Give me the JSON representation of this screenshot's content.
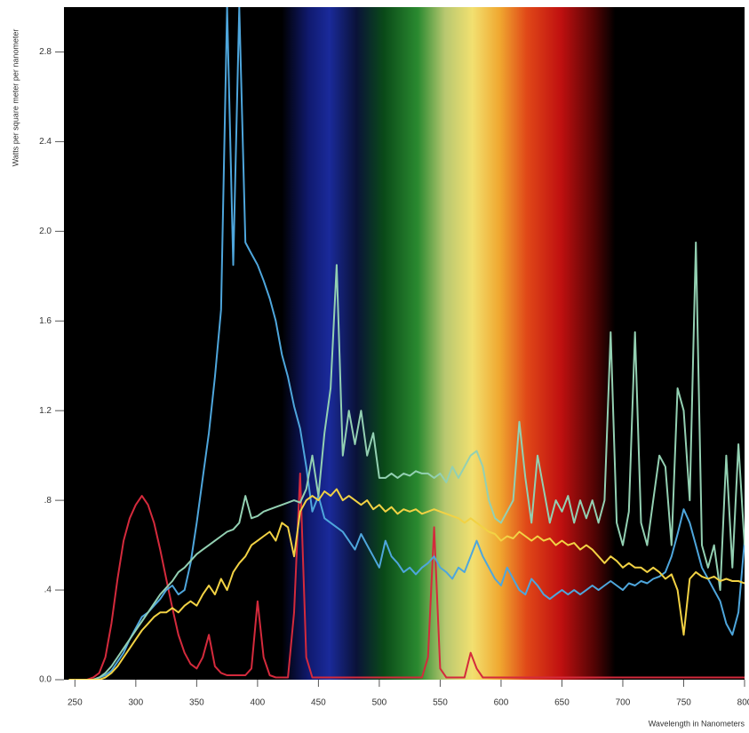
{
  "chart_data": {
    "type": "line",
    "y_label": "Watts per square meter per nanometer",
    "x_label": "Wavelength in Nanometers",
    "x": [
      245,
      250,
      255,
      260,
      265,
      270,
      275,
      280,
      285,
      290,
      295,
      300,
      305,
      310,
      315,
      320,
      325,
      330,
      335,
      340,
      345,
      350,
      355,
      360,
      365,
      370,
      375,
      380,
      385,
      390,
      395,
      400,
      405,
      410,
      415,
      420,
      425,
      430,
      435,
      440,
      445,
      450,
      455,
      460,
      465,
      470,
      475,
      480,
      485,
      490,
      495,
      500,
      505,
      510,
      515,
      520,
      525,
      530,
      535,
      540,
      545,
      550,
      555,
      560,
      565,
      570,
      575,
      580,
      585,
      590,
      595,
      600,
      605,
      610,
      615,
      620,
      625,
      630,
      635,
      640,
      645,
      650,
      655,
      660,
      665,
      670,
      675,
      680,
      685,
      690,
      695,
      700,
      705,
      710,
      715,
      720,
      725,
      730,
      735,
      740,
      745,
      750,
      755,
      760,
      765,
      770,
      775,
      780,
      785,
      790,
      795,
      800
    ],
    "series": [
      {
        "color": "#d42a3c",
        "values": [
          0,
          0,
          0,
          0,
          0.01,
          0.03,
          0.1,
          0.25,
          0.45,
          0.62,
          0.72,
          0.78,
          0.82,
          0.78,
          0.7,
          0.58,
          0.45,
          0.32,
          0.2,
          0.12,
          0.07,
          0.05,
          0.1,
          0.2,
          0.06,
          0.03,
          0.02,
          0.02,
          0.02,
          0.02,
          0.05,
          0.35,
          0.1,
          0.02,
          0.01,
          0.01,
          0.01,
          0.3,
          0.92,
          0.1,
          0.01,
          0.01,
          0.01,
          0.01,
          0.01,
          0.01,
          0.01,
          0.01,
          0.01,
          0.01,
          0.01,
          0.01,
          0.01,
          0.01,
          0.01,
          0.01,
          0.01,
          0.01,
          0.01,
          0.1,
          0.68,
          0.05,
          0.01,
          0.01,
          0.01,
          0.01,
          0.12,
          0.05,
          0.01,
          0.01,
          0.01,
          0.01,
          0.01,
          0.01,
          0.01,
          0.01,
          0.01,
          0.01,
          0.01,
          0.01,
          0.01,
          0.01,
          0.01,
          0.01,
          0.01,
          0.01,
          0.01,
          0.01,
          0.01,
          0.01,
          0.01,
          0.01,
          0.01,
          0.01,
          0.01,
          0.01,
          0.01,
          0.01,
          0.01,
          0.01,
          0.01,
          0.01,
          0.01,
          0.01,
          0.01,
          0.01,
          0.01,
          0.01,
          0.01,
          0.01,
          0.01,
          0.01
        ]
      },
      {
        "color": "#4ea6dc",
        "values": [
          0,
          0,
          0,
          0,
          0,
          0.01,
          0.02,
          0.04,
          0.08,
          0.12,
          0.18,
          0.23,
          0.28,
          0.3,
          0.33,
          0.36,
          0.4,
          0.42,
          0.38,
          0.4,
          0.52,
          0.7,
          0.9,
          1.1,
          1.35,
          1.65,
          3.0,
          1.85,
          3.0,
          1.95,
          1.9,
          1.85,
          1.78,
          1.7,
          1.6,
          1.45,
          1.35,
          1.22,
          1.12,
          0.95,
          0.75,
          0.82,
          0.72,
          0.7,
          0.68,
          0.66,
          0.62,
          0.58,
          0.65,
          0.6,
          0.55,
          0.5,
          0.62,
          0.55,
          0.52,
          0.48,
          0.5,
          0.47,
          0.5,
          0.52,
          0.55,
          0.5,
          0.48,
          0.45,
          0.5,
          0.48,
          0.55,
          0.62,
          0.55,
          0.5,
          0.45,
          0.42,
          0.5,
          0.45,
          0.4,
          0.38,
          0.45,
          0.42,
          0.38,
          0.36,
          0.38,
          0.4,
          0.38,
          0.4,
          0.38,
          0.4,
          0.42,
          0.4,
          0.42,
          0.44,
          0.42,
          0.4,
          0.43,
          0.42,
          0.44,
          0.43,
          0.45,
          0.46,
          0.48,
          0.55,
          0.65,
          0.76,
          0.7,
          0.6,
          0.5,
          0.45,
          0.4,
          0.35,
          0.25,
          0.2,
          0.3,
          0.62
        ]
      },
      {
        "color": "#93d0b2",
        "values": [
          0,
          0,
          0,
          0,
          0,
          0.01,
          0.03,
          0.06,
          0.1,
          0.14,
          0.18,
          0.22,
          0.26,
          0.3,
          0.34,
          0.38,
          0.41,
          0.44,
          0.48,
          0.5,
          0.53,
          0.56,
          0.58,
          0.6,
          0.62,
          0.64,
          0.66,
          0.67,
          0.7,
          0.82,
          0.72,
          0.73,
          0.75,
          0.76,
          0.77,
          0.78,
          0.79,
          0.8,
          0.79,
          0.85,
          1.0,
          0.82,
          1.1,
          1.3,
          1.85,
          1.0,
          1.2,
          1.05,
          1.2,
          1.0,
          1.1,
          0.9,
          0.9,
          0.92,
          0.9,
          0.92,
          0.91,
          0.93,
          0.92,
          0.92,
          0.9,
          0.92,
          0.88,
          0.95,
          0.9,
          0.95,
          1.0,
          1.02,
          0.95,
          0.8,
          0.72,
          0.7,
          0.75,
          0.8,
          1.15,
          0.9,
          0.7,
          1.0,
          0.85,
          0.7,
          0.8,
          0.75,
          0.82,
          0.7,
          0.8,
          0.72,
          0.8,
          0.7,
          0.8,
          1.55,
          0.7,
          0.6,
          0.75,
          1.55,
          0.7,
          0.6,
          0.8,
          1.0,
          0.95,
          0.6,
          1.3,
          1.2,
          0.8,
          1.95,
          0.6,
          0.5,
          0.6,
          0.4,
          1.0,
          0.5,
          1.05,
          0.6
        ]
      },
      {
        "color": "#f2d244",
        "values": [
          0,
          0,
          0,
          0,
          0,
          0,
          0.01,
          0.03,
          0.06,
          0.1,
          0.14,
          0.18,
          0.22,
          0.25,
          0.28,
          0.3,
          0.3,
          0.32,
          0.3,
          0.33,
          0.35,
          0.33,
          0.38,
          0.42,
          0.38,
          0.45,
          0.4,
          0.48,
          0.52,
          0.55,
          0.6,
          0.62,
          0.64,
          0.66,
          0.62,
          0.7,
          0.68,
          0.55,
          0.75,
          0.8,
          0.82,
          0.8,
          0.84,
          0.82,
          0.85,
          0.8,
          0.82,
          0.8,
          0.78,
          0.8,
          0.76,
          0.78,
          0.75,
          0.77,
          0.74,
          0.76,
          0.75,
          0.76,
          0.74,
          0.75,
          0.76,
          0.75,
          0.74,
          0.73,
          0.72,
          0.7,
          0.72,
          0.7,
          0.68,
          0.66,
          0.65,
          0.62,
          0.64,
          0.63,
          0.66,
          0.64,
          0.62,
          0.64,
          0.62,
          0.63,
          0.6,
          0.62,
          0.6,
          0.61,
          0.58,
          0.6,
          0.58,
          0.55,
          0.52,
          0.55,
          0.53,
          0.5,
          0.52,
          0.5,
          0.5,
          0.48,
          0.5,
          0.48,
          0.45,
          0.47,
          0.4,
          0.2,
          0.45,
          0.48,
          0.46,
          0.45,
          0.46,
          0.44,
          0.45,
          0.44,
          0.44,
          0.43
        ]
      }
    ],
    "xlim": [
      241,
      800
    ],
    "xticks": [
      250,
      300,
      350,
      400,
      450,
      500,
      550,
      600,
      650,
      700,
      750,
      800
    ],
    "ylim": [
      0,
      3.0
    ],
    "yticks": [
      {
        "value": 0,
        "label": "0.0"
      },
      {
        "value": 0.4,
        "label": ".4"
      },
      {
        "value": 0.8,
        "label": ".8"
      },
      1.2,
      1.6,
      {
        "value": 2.0,
        "label": "2.0"
      },
      2.4,
      2.8
    ]
  }
}
